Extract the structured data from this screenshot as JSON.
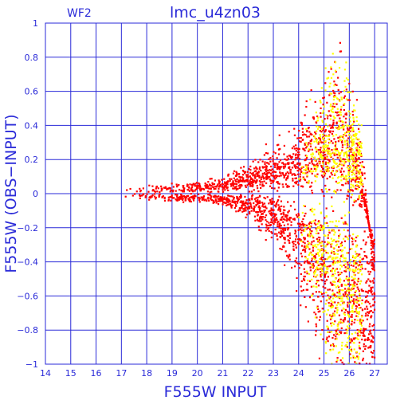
{
  "chart_data": {
    "type": "scatter",
    "title": "lmc_u4zn03",
    "panel_label": "WF2",
    "xlabel": "F555W INPUT",
    "ylabel": "F555W (OBS−INPUT)",
    "xlim": [
      14,
      27.5
    ],
    "ylim": [
      -1,
      1
    ],
    "x_ticks": [
      "14",
      "15",
      "16",
      "17",
      "18",
      "19",
      "20",
      "21",
      "22",
      "23",
      "24",
      "25",
      "26",
      "27"
    ],
    "y_ticks": [
      "1",
      "0.8",
      "0.6",
      "0.4",
      "0.2",
      "0",
      "−0.2",
      "−0.4",
      "−0.6",
      "−0.8",
      "−1"
    ],
    "grid": true,
    "colors": {
      "axes": "#2a2ad8",
      "grid": "#2a2ad8",
      "red_series": "#ff0000",
      "yellow_series": "#ffff00"
    },
    "series": [
      {
        "color": "#ff0000",
        "description_of_trend": "tight band near 0 from x≈17 to 21, spreading into a fan toward x≈26.5",
        "envelope": [
          {
            "x": 17.0,
            "y_low": -0.02,
            "y_high": 0.03
          },
          {
            "x": 19.0,
            "y_low": -0.03,
            "y_high": 0.04
          },
          {
            "x": 21.0,
            "y_low": -0.05,
            "y_high": 0.07
          },
          {
            "x": 22.0,
            "y_low": -0.1,
            "y_high": 0.12
          },
          {
            "x": 23.0,
            "y_low": -0.2,
            "y_high": 0.2
          },
          {
            "x": 24.0,
            "y_low": -0.4,
            "y_high": 0.3
          },
          {
            "x": 25.0,
            "y_low": -0.7,
            "y_high": 0.45
          },
          {
            "x": 25.7,
            "y_low": -0.9,
            "y_high": 0.55
          },
          {
            "x": 26.5,
            "y_low": -1.0,
            "y_high": 0.2
          },
          {
            "x": 27.0,
            "y_low": -1.0,
            "y_high": -0.5
          }
        ]
      },
      {
        "color": "#ffff00",
        "description_of_trend": "concentrated at faint magnitudes x≈25 to 26.5, mostly positive offsets",
        "envelope": [
          {
            "x": 24.0,
            "y_low": -0.3,
            "y_high": 0.2
          },
          {
            "x": 25.0,
            "y_low": -0.6,
            "y_high": 0.5
          },
          {
            "x": 25.7,
            "y_low": -0.9,
            "y_high": 0.55
          },
          {
            "x": 26.5,
            "y_low": -1.0,
            "y_high": 0.3
          }
        ]
      }
    ]
  }
}
